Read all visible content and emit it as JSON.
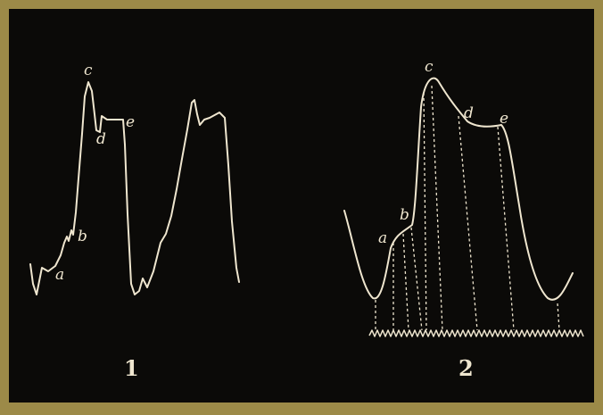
{
  "colors": {
    "border": "#9c8a48",
    "plate": "#0b0a08",
    "ink": "#efe6cf"
  },
  "panels": [
    {
      "number": "1",
      "labels": {
        "a": "a",
        "b": "b",
        "c": "c",
        "d": "d",
        "e": "e"
      }
    },
    {
      "number": "2",
      "labels": {
        "a": "a",
        "b": "b",
        "c": "c",
        "d": "d",
        "e": "e"
      }
    }
  ]
}
